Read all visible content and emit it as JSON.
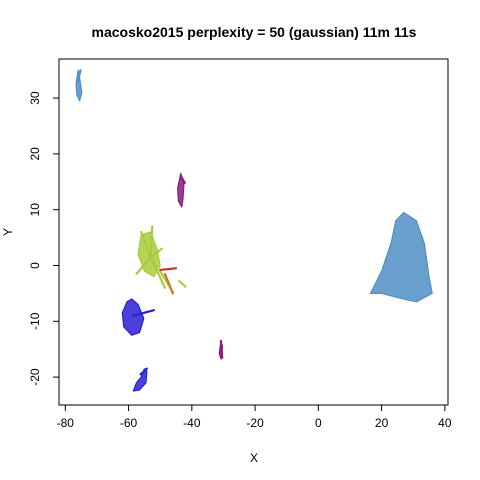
{
  "chart_data": {
    "type": "scatter",
    "title": "macosko2015 perplexity = 50 (gaussian) 11m 11s",
    "xlabel": "X",
    "ylabel": "Y",
    "xlim": [
      -82,
      41
    ],
    "ylim": [
      -25,
      37
    ],
    "xticks": [
      -80,
      -60,
      -40,
      -20,
      0,
      20,
      40
    ],
    "yticks": [
      -20,
      -10,
      0,
      10,
      20,
      30
    ],
    "grid": false,
    "legend": "none",
    "clusters": [
      {
        "color": "#4f8fc6",
        "shape": "blob",
        "outline": [
          [
            -76,
            35
          ],
          [
            -75.3,
            33
          ],
          [
            -74.8,
            31
          ],
          [
            -75.5,
            29.5
          ],
          [
            -76.3,
            30.5
          ],
          [
            -76.6,
            32.5
          ]
        ]
      },
      {
        "color": "#8b1a7a",
        "shape": "blob",
        "outline": [
          [
            -43.5,
            16.5
          ],
          [
            -42.5,
            14.5
          ],
          [
            -42.8,
            12
          ],
          [
            -43.2,
            10.5
          ],
          [
            -44.2,
            11.5
          ],
          [
            -44.5,
            13.8
          ]
        ]
      },
      {
        "color": "#4f8fc6",
        "shape": "blob",
        "outline": [
          [
            27,
            9.5
          ],
          [
            31,
            8
          ],
          [
            33.5,
            4
          ],
          [
            35,
            -2
          ],
          [
            36,
            -5
          ],
          [
            31,
            -6.5
          ],
          [
            27,
            -6
          ],
          [
            20,
            -5
          ],
          [
            16.5,
            -5
          ],
          [
            20,
            -1
          ],
          [
            23,
            4
          ],
          [
            24.5,
            8
          ]
        ]
      },
      {
        "color": "#2a1fd4",
        "shape": "blob",
        "outline": [
          [
            -59,
            -6
          ],
          [
            -57,
            -7
          ],
          [
            -55.2,
            -9.5
          ],
          [
            -56.5,
            -12
          ],
          [
            -59,
            -12.5
          ],
          [
            -61.5,
            -11
          ],
          [
            -62,
            -8.5
          ],
          [
            -60.5,
            -6.5
          ]
        ]
      },
      {
        "color": "#2a1fd4",
        "shape": "blob",
        "outline": [
          [
            -55,
            -18.5
          ],
          [
            -54.2,
            -19
          ],
          [
            -54.5,
            -21
          ],
          [
            -56.5,
            -22.3
          ],
          [
            -58.5,
            -22.5
          ],
          [
            -57.5,
            -21
          ],
          [
            -56,
            -20
          ]
        ]
      },
      {
        "color": "#8b1a7a",
        "shape": "blob",
        "outline": [
          [
            -30.8,
            -13.5
          ],
          [
            -30.3,
            -14.5
          ],
          [
            -30.7,
            -16.8
          ],
          [
            -31.3,
            -15.8
          ]
        ]
      },
      {
        "color": "#a8cc3c",
        "shape": "blob",
        "outline": [
          [
            -56,
            5.5
          ],
          [
            -53,
            6
          ],
          [
            -51,
            3
          ],
          [
            -50,
            0
          ],
          [
            -52,
            -2
          ],
          [
            -55,
            -1
          ],
          [
            -57,
            2
          ]
        ]
      }
    ],
    "segments": [
      {
        "color": "#a8cc3c",
        "from": [
          -53,
          1.5
        ],
        "to": [
          -56,
          6
        ]
      },
      {
        "color": "#a8cc3c",
        "from": [
          -53,
          1.5
        ],
        "to": [
          -52.5,
          7
        ]
      },
      {
        "color": "#a8cc3c",
        "from": [
          -53,
          1.5
        ],
        "to": [
          -49.5,
          3
        ]
      },
      {
        "color": "#a8cc3c",
        "from": [
          -53,
          1.5
        ],
        "to": [
          -57.5,
          -1.5
        ]
      },
      {
        "color": "#a8cc3c",
        "from": [
          -53,
          1.5
        ],
        "to": [
          -48.5,
          -4
        ]
      },
      {
        "color": "#a8cc3c",
        "from": [
          -50,
          -1
        ],
        "to": [
          -46,
          -4.8
        ]
      },
      {
        "color": "#a8cc3c",
        "from": [
          -44,
          -2.8
        ],
        "to": [
          -42,
          -3.8
        ]
      },
      {
        "color": "#c8782a",
        "from": [
          -48.5,
          -1.5
        ],
        "to": [
          -46,
          -5
        ]
      },
      {
        "color": "#c0392b",
        "from": [
          -50,
          -0.8
        ],
        "to": [
          -45,
          -0.5
        ]
      },
      {
        "color": "#2a1fd4",
        "from": [
          -58.5,
          -9
        ],
        "to": [
          -52,
          -8
        ]
      },
      {
        "color": "#2a1fd4",
        "from": [
          -56.2,
          -19.5
        ],
        "to": [
          -54.2,
          -18.5
        ]
      },
      {
        "color": "#4f8fc6",
        "from": [
          -76,
          33
        ],
        "to": [
          -75.2,
          35
        ]
      },
      {
        "color": "#8b1a7a",
        "from": [
          -43.5,
          16
        ],
        "to": [
          -42.2,
          14.8
        ]
      },
      {
        "color": "#8b1a7a",
        "from": [
          -30.8,
          -13.5
        ],
        "to": [
          -30.4,
          -16.5
        ]
      }
    ]
  }
}
